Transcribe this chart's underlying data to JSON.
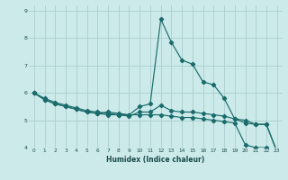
{
  "xlabel": "Humidex (Indice chaleur)",
  "bg_color": "#cceaea",
  "grid_color": "#aacece",
  "line_color": "#1a6b6b",
  "xlim": [
    -0.5,
    23.5
  ],
  "ylim": [
    4,
    9.2
  ],
  "yticks": [
    4,
    5,
    6,
    7,
    8,
    9
  ],
  "xticks": [
    0,
    1,
    2,
    3,
    4,
    5,
    6,
    7,
    8,
    9,
    10,
    11,
    12,
    13,
    14,
    15,
    16,
    17,
    18,
    19,
    20,
    21,
    22,
    23
  ],
  "line1_x": [
    0,
    1,
    2,
    3,
    4,
    5,
    6,
    7,
    8,
    9,
    10,
    11,
    12,
    13,
    14,
    15,
    16,
    17,
    18,
    19,
    20,
    21,
    22,
    23
  ],
  "line1_y": [
    6.0,
    5.75,
    5.6,
    5.5,
    5.4,
    5.3,
    5.25,
    5.3,
    5.25,
    5.2,
    5.5,
    5.6,
    8.7,
    7.85,
    7.2,
    7.05,
    6.4,
    6.3,
    5.8,
    5.05,
    4.9,
    4.85,
    4.85,
    3.85
  ],
  "line2_x": [
    0,
    1,
    2,
    3,
    4,
    5,
    6,
    7,
    8,
    9,
    10,
    11,
    12,
    13,
    14,
    15,
    16,
    17,
    18,
    19,
    20,
    21,
    22,
    23
  ],
  "line2_y": [
    6.0,
    5.75,
    5.6,
    5.5,
    5.4,
    5.3,
    5.25,
    5.2,
    5.2,
    5.15,
    5.3,
    5.3,
    5.55,
    5.35,
    5.3,
    5.3,
    5.25,
    5.2,
    5.15,
    5.05,
    5.0,
    4.85,
    4.85,
    3.85
  ],
  "line3_x": [
    0,
    1,
    2,
    3,
    4,
    5,
    6,
    7,
    8,
    9,
    10,
    11,
    12,
    13,
    14,
    15,
    16,
    17,
    18,
    19,
    20,
    21,
    22,
    23
  ],
  "line3_y": [
    6.0,
    5.8,
    5.65,
    5.55,
    5.45,
    5.35,
    5.3,
    5.25,
    5.2,
    5.2,
    5.2,
    5.2,
    5.2,
    5.15,
    5.1,
    5.1,
    5.05,
    5.0,
    4.95,
    4.9,
    4.1,
    4.0,
    4.0,
    3.85
  ]
}
